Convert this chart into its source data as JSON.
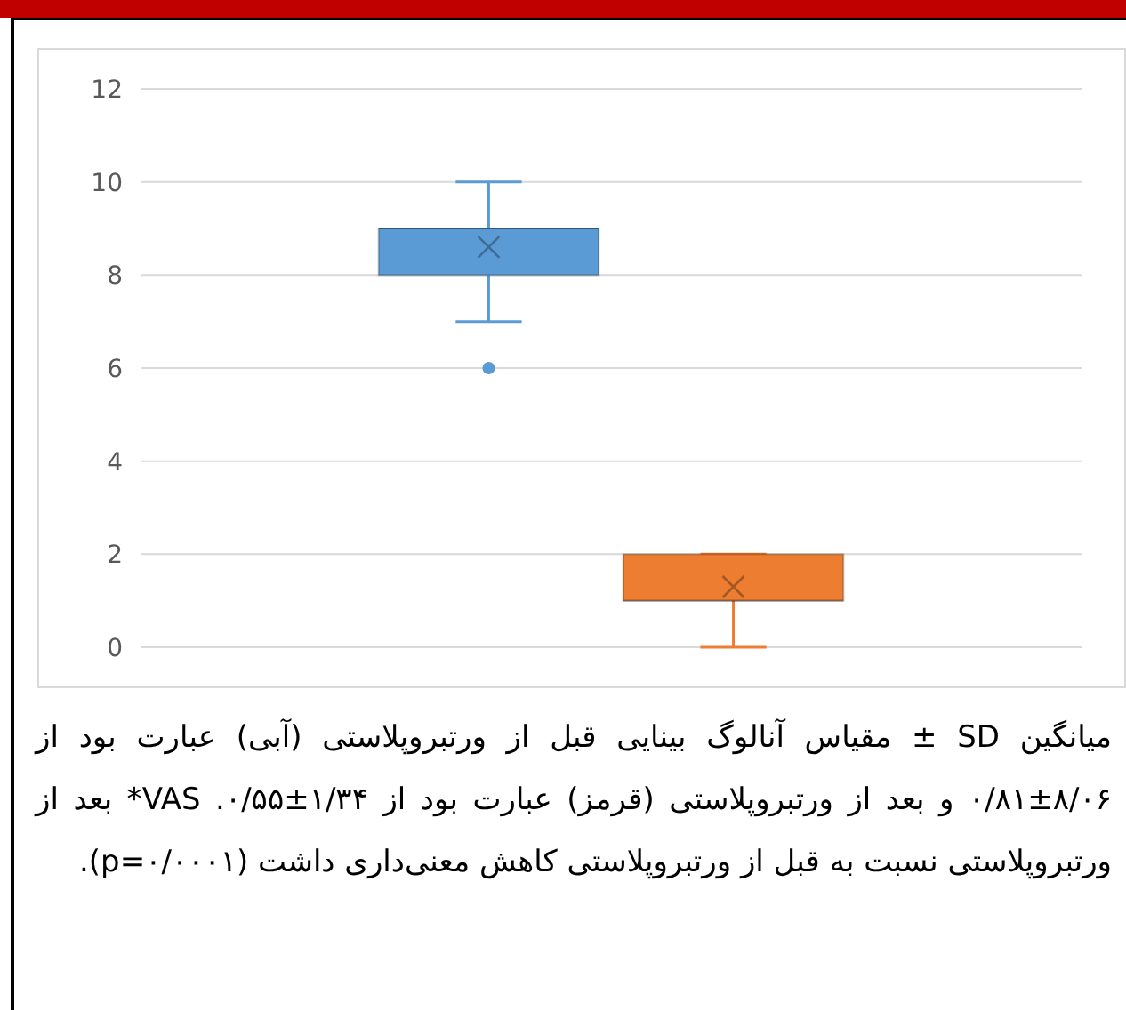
{
  "chart_data": {
    "type": "box",
    "categories": [
      null
    ],
    "series": [
      {
        "color": "#5b9bd5",
        "boxes": [
          {
            "low": 7,
            "q1": 8,
            "median": 9,
            "q3": 9,
            "high": 10,
            "mean": 8.6,
            "outliers": [
              6
            ]
          }
        ]
      },
      {
        "color": "#ed7d31",
        "boxes": [
          {
            "low": 0,
            "q1": 1,
            "median": 1,
            "q3": 2,
            "high": 2,
            "mean": 1.3
          }
        ]
      }
    ],
    "ylim": [
      0,
      12
    ],
    "yticks": [
      0,
      2,
      4,
      6,
      8,
      10,
      12
    ],
    "grid": "y",
    "annotations": [
      "میانگین SD ± مقیاس آنالوگ بینایی قبل از ورتبروپلاستی (آبی) عبارت بود از ۸/۰۶±۰/۸۱ و بعد از ورتبروپلاستی (قرمز) عبارت بود از ۱/۳۴±۰/۵۵. VAS* بعد از ورتبروپلاستی نسبت به قبل از ورتبروپلاستی کاهش معنی‌داری داشت (p=۰/۰۰۰۱)."
    ]
  }
}
